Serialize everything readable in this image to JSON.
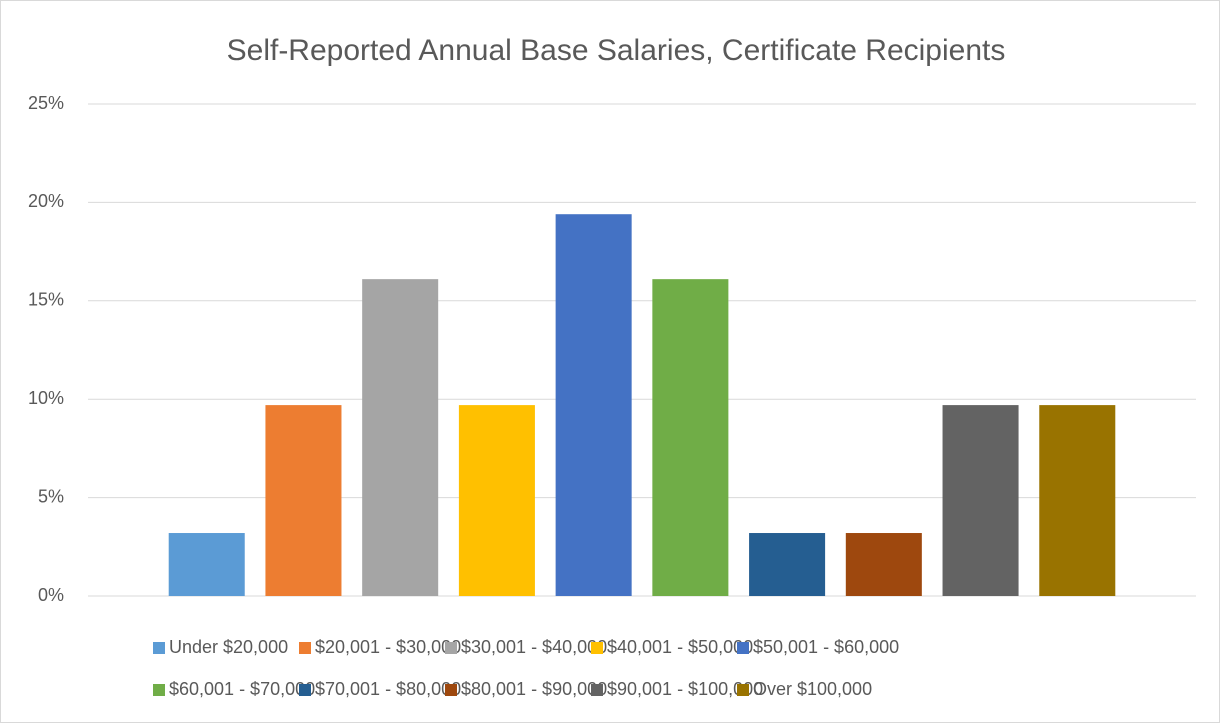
{
  "chart_data": {
    "type": "bar",
    "title": "Self-Reported Annual Base Salaries, Certificate Recipients",
    "categories": [
      null
    ],
    "series": [
      {
        "name": "Under $20,000",
        "color": "#5b9bd5",
        "values": [
          3.2
        ]
      },
      {
        "name": "$20,001 - $30,000",
        "color": "#ed7d31",
        "values": [
          9.7
        ]
      },
      {
        "name": "$30,001 - $40,000",
        "color": "#a5a5a5",
        "values": [
          16.1
        ]
      },
      {
        "name": "$40,001 - $50,000",
        "color": "#ffc000",
        "values": [
          9.7
        ]
      },
      {
        "name": "$50,001 - $60,000",
        "color": "#4472c4",
        "values": [
          19.4
        ]
      },
      {
        "name": "$60,001 - $70,000",
        "color": "#70ad47",
        "values": [
          16.1
        ]
      },
      {
        "name": "$70,001 - $80,000",
        "color": "#255e91",
        "values": [
          3.2
        ]
      },
      {
        "name": "$80,001 - $90,000",
        "color": "#9e480e",
        "values": [
          3.2
        ]
      },
      {
        "name": "$90,001 - $100,000",
        "color": "#636363",
        "values": [
          9.7
        ]
      },
      {
        "name": "Over $100,000",
        "color": "#997300",
        "values": [
          9.7
        ]
      }
    ],
    "ylim": [
      0,
      25
    ],
    "yticks": [
      {
        "value": 0,
        "label": "0%"
      },
      {
        "value": 5,
        "label": "5%"
      },
      {
        "value": 10,
        "label": "10%"
      },
      {
        "value": 15,
        "label": "15%"
      },
      {
        "value": 20,
        "label": "20%"
      },
      {
        "value": 25,
        "label": "25%"
      }
    ],
    "grid": true,
    "legend": "bottom"
  }
}
